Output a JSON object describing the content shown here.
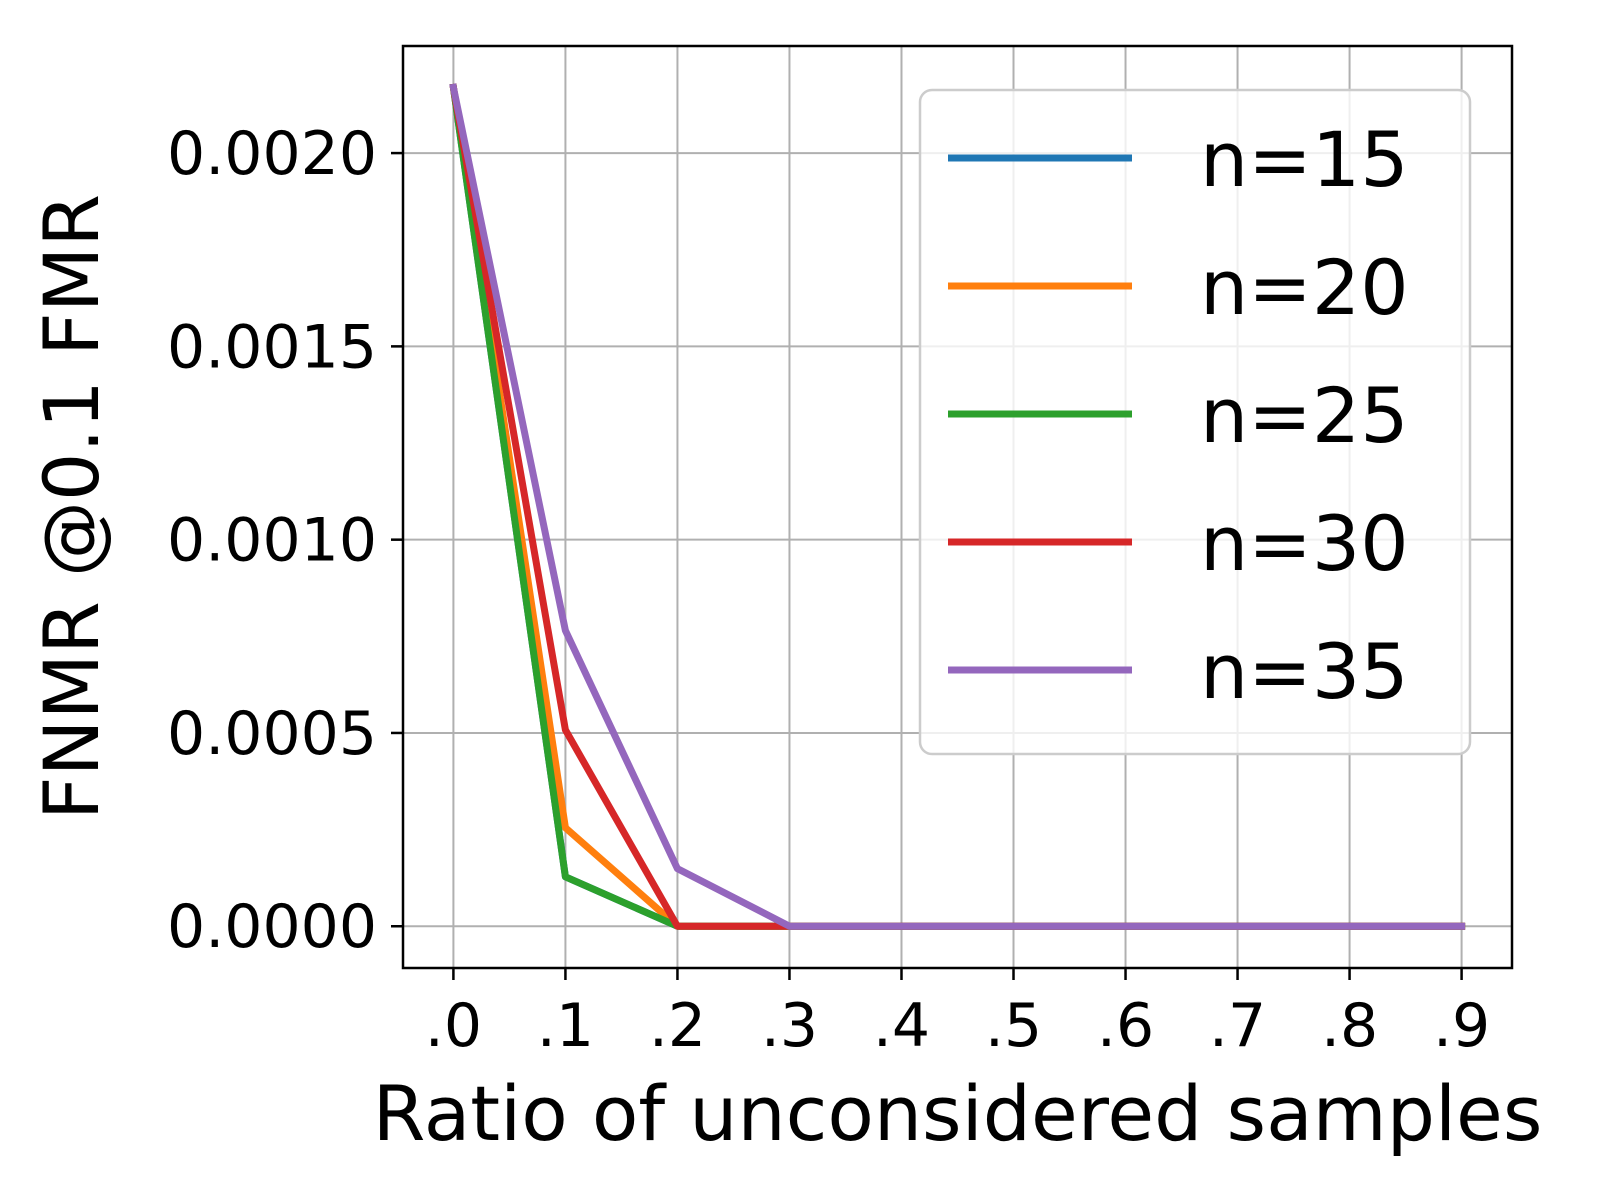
{
  "chart_data": {
    "type": "line",
    "title": "",
    "xlabel": "Ratio of unconsidered samples",
    "ylabel": "FNMR @0.1 FMR",
    "x": [
      0.0,
      0.1,
      0.2,
      0.3,
      0.4,
      0.5,
      0.6,
      0.7,
      0.8,
      0.9
    ],
    "xtick_labels": [
      ".0",
      ".1",
      ".2",
      ".3",
      ".4",
      ".5",
      ".6",
      ".7",
      ".8",
      ".9"
    ],
    "yticks": [
      0.0,
      0.0005,
      0.001,
      0.0015,
      0.002
    ],
    "ytick_labels": [
      "0.0000",
      "0.0005",
      "0.0010",
      "0.0015",
      "0.0020"
    ],
    "xlim": [
      -0.045,
      0.945
    ],
    "ylim": [
      -0.000108,
      0.002277
    ],
    "grid": true,
    "legend_position": "upper right",
    "series": [
      {
        "name": "n=15",
        "color": "#1f77b4",
        "values": [
          0.00217,
          0.000128,
          0.0,
          0.0,
          0.0,
          0.0,
          0.0,
          0.0,
          0.0,
          0.0
        ]
      },
      {
        "name": "n=20",
        "color": "#ff7f0e",
        "values": [
          0.00217,
          0.000255,
          0.0,
          0.0,
          0.0,
          0.0,
          0.0,
          0.0,
          0.0,
          0.0
        ]
      },
      {
        "name": "n=25",
        "color": "#2ca02c",
        "values": [
          0.00217,
          0.000128,
          0.0,
          0.0,
          0.0,
          0.0,
          0.0,
          0.0,
          0.0,
          0.0
        ]
      },
      {
        "name": "n=30",
        "color": "#d62728",
        "values": [
          0.00217,
          0.000508,
          0.0,
          0.0,
          0.0,
          0.0,
          0.0,
          0.0,
          0.0,
          0.0
        ]
      },
      {
        "name": "n=35",
        "color": "#9467bd",
        "values": [
          0.00217,
          0.000765,
          0.000149,
          0.0,
          0.0,
          0.0,
          0.0,
          0.0,
          0.0,
          0.0
        ]
      }
    ]
  }
}
